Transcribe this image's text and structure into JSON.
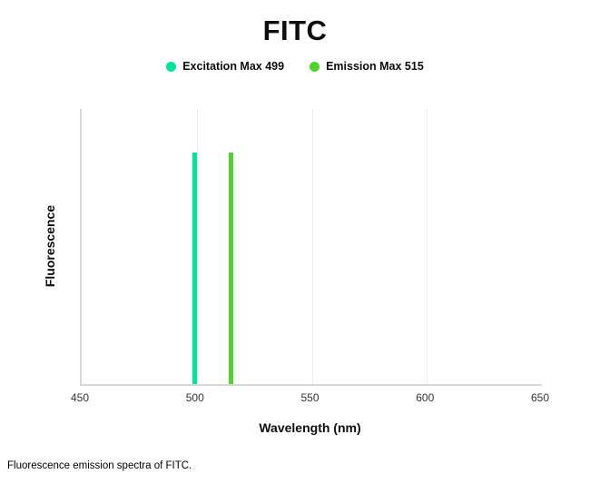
{
  "title": "FITC",
  "caption": "Fluorescence emission spectra of FITC.",
  "legend": {
    "items": [
      {
        "label": "Excitation Max 499",
        "color": "#00e59b",
        "dot_icon": "circle-icon"
      },
      {
        "label": "Emission Max 515",
        "color": "#4cd62b",
        "dot_icon": "circle-icon"
      }
    ]
  },
  "chart_data": {
    "type": "bar",
    "title": "FITC",
    "xlabel": "Wavelength (nm)",
    "ylabel": "Fluorescence",
    "xlim": [
      450,
      650
    ],
    "ylim": [
      0,
      1.19
    ],
    "x_ticks": [
      450,
      500,
      550,
      600,
      650
    ],
    "y_ticks": [],
    "gridlines_x": [
      500,
      550,
      600
    ],
    "grid": "vertical-only",
    "legend_position": "top-center",
    "series": [
      {
        "name": "Excitation Max 499",
        "wavelength_nm": 499,
        "value": 1.0,
        "color": "#00e59b"
      },
      {
        "name": "Emission Max 515",
        "wavelength_nm": 515,
        "value": 1.0,
        "color": "#4cd62b"
      }
    ]
  }
}
